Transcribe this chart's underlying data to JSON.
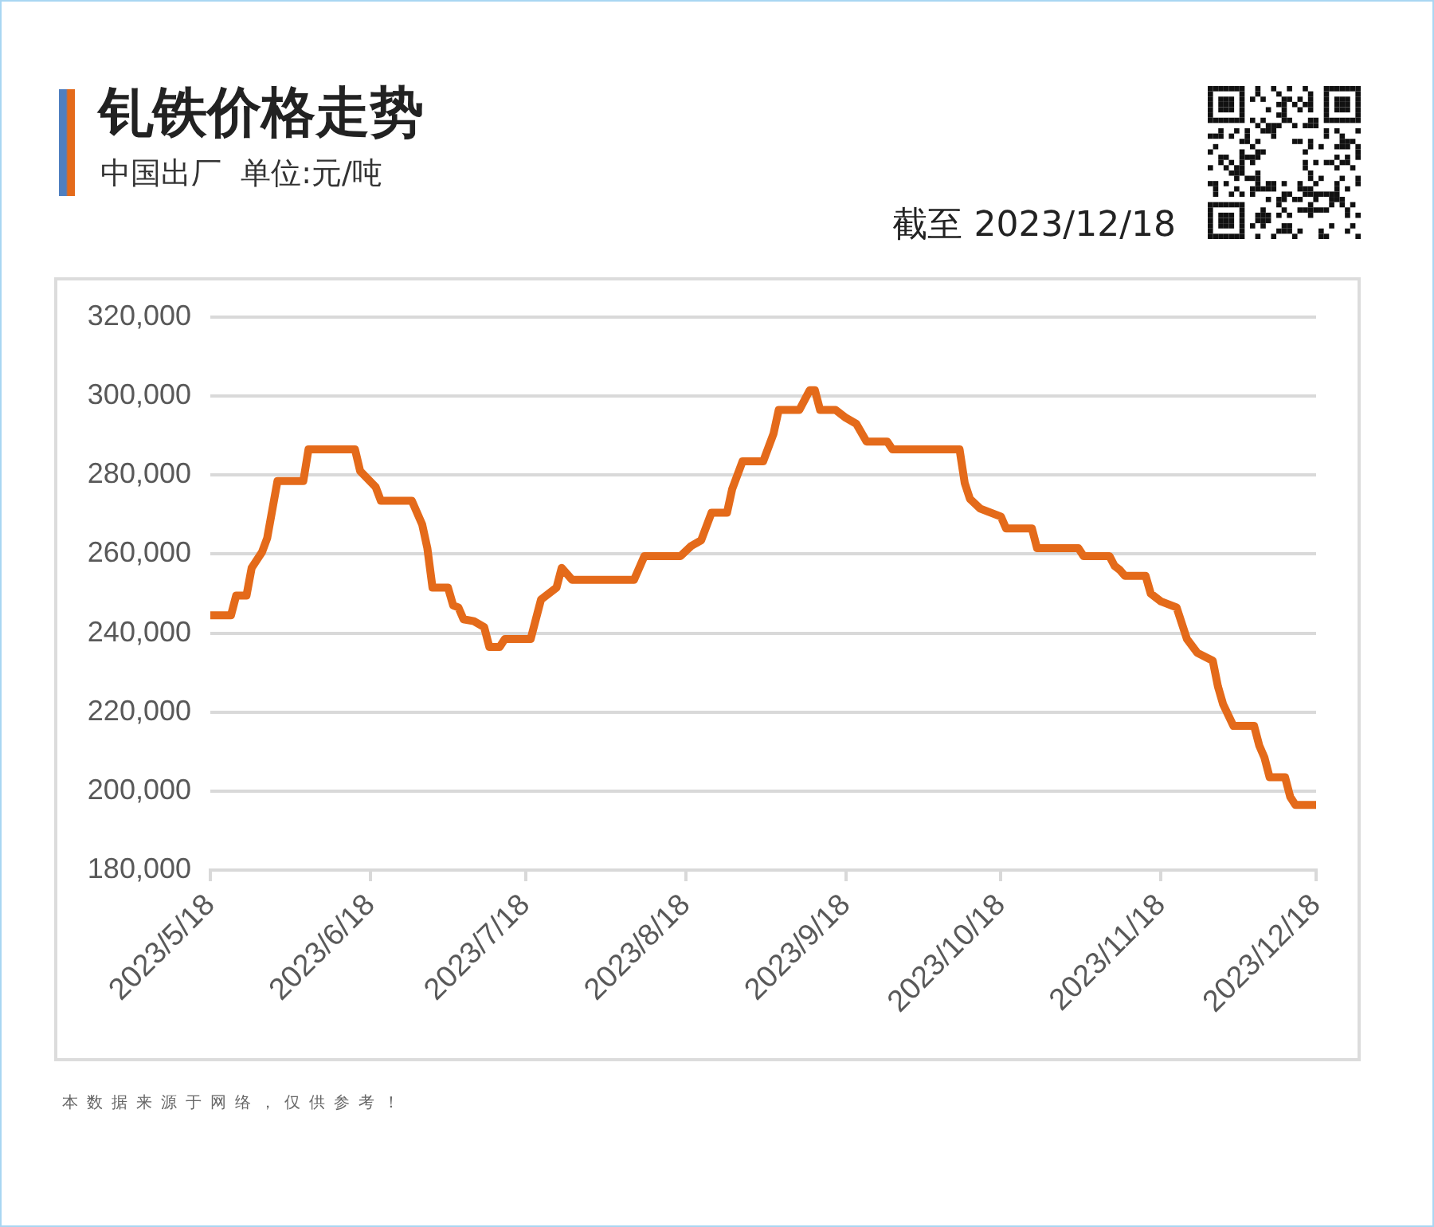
{
  "chart_data": {
    "type": "line",
    "title": "钆铁价格走势",
    "subtitle": "中国出厂  单位:元/吨",
    "annotations": [
      "截至 2023/12/18",
      "本数据来源于网络，仅供参考！"
    ],
    "x": [
      "2023-05-18",
      "2023-05-22",
      "2023-05-23",
      "2023-05-25",
      "2023-05-26",
      "2023-05-28",
      "2023-05-29",
      "2023-05-31",
      "2023-06-05",
      "2023-06-06",
      "2023-06-15",
      "2023-06-16",
      "2023-06-19",
      "2023-06-20",
      "2023-06-26",
      "2023-06-28",
      "2023-06-29",
      "2023-06-30",
      "2023-07-03",
      "2023-07-04",
      "2023-07-05",
      "2023-07-06",
      "2023-07-08",
      "2023-07-10",
      "2023-07-11",
      "2023-07-13",
      "2023-07-14",
      "2023-07-19",
      "2023-07-21",
      "2023-07-24",
      "2023-07-25",
      "2023-07-27",
      "2023-08-08",
      "2023-08-10",
      "2023-08-17",
      "2023-08-19",
      "2023-08-21",
      "2023-08-23",
      "2023-08-26",
      "2023-08-27",
      "2023-08-29",
      "2023-09-02",
      "2023-09-04",
      "2023-09-05",
      "2023-09-09",
      "2023-09-11",
      "2023-09-12",
      "2023-09-13",
      "2023-09-16",
      "2023-09-18",
      "2023-09-20",
      "2023-09-22",
      "2023-09-26",
      "2023-09-27",
      "2023-10-10",
      "2023-10-11",
      "2023-10-12",
      "2023-10-14",
      "2023-10-18",
      "2023-10-19",
      "2023-10-24",
      "2023-10-25",
      "2023-11-02",
      "2023-11-03",
      "2023-11-08",
      "2023-11-09",
      "2023-11-10",
      "2023-11-11",
      "2023-11-15",
      "2023-11-16",
      "2023-11-18",
      "2023-11-21",
      "2023-11-23",
      "2023-11-25",
      "2023-11-28",
      "2023-11-29",
      "2023-11-30",
      "2023-12-02",
      "2023-12-06",
      "2023-12-07",
      "2023-12-08",
      "2023-12-09",
      "2023-12-12",
      "2023-12-13",
      "2023-12-14",
      "2023-12-18"
    ],
    "values": [
      244500,
      244500,
      249500,
      249500,
      256500,
      260500,
      264000,
      278500,
      278500,
      286500,
      286500,
      281000,
      277000,
      273500,
      273500,
      267500,
      261500,
      251500,
      251500,
      247000,
      246500,
      243500,
      243000,
      241500,
      236500,
      236500,
      238500,
      238500,
      248500,
      251500,
      256500,
      253500,
      253500,
      259500,
      259500,
      262000,
      263500,
      270500,
      270500,
      276500,
      283500,
      283500,
      290500,
      296500,
      296500,
      301500,
      301500,
      296500,
      296500,
      294500,
      293000,
      288500,
      288500,
      286500,
      286500,
      278000,
      274000,
      271500,
      269500,
      266500,
      266500,
      261500,
      261500,
      259500,
      259500,
      257000,
      256000,
      254500,
      254500,
      250000,
      248000,
      246500,
      238500,
      235000,
      233000,
      226500,
      222000,
      216500,
      216500,
      211500,
      208500,
      203500,
      203500,
      198500,
      196500,
      196500
    ],
    "color": "#e46a1a",
    "xlim": [
      "2023-05-18",
      "2023-12-18"
    ],
    "xticks": [
      {
        "value": "2023-05-18",
        "label": "2023/5/18"
      },
      {
        "value": "2023-06-18",
        "label": "2023/6/18"
      },
      {
        "value": "2023-07-18",
        "label": "2023/7/18"
      },
      {
        "value": "2023-08-18",
        "label": "2023/8/18"
      },
      {
        "value": "2023-09-18",
        "label": "2023/9/18"
      },
      {
        "value": "2023-10-18",
        "label": "2023/10/18"
      },
      {
        "value": "2023-11-18",
        "label": "2023/11/18"
      },
      {
        "value": "2023-12-18",
        "label": "2023/12/18"
      }
    ],
    "ylim": [
      180000,
      320000
    ],
    "yticks": [
      {
        "value": 180000,
        "label": "180,000"
      },
      {
        "value": 200000,
        "label": "200,000"
      },
      {
        "value": 220000,
        "label": "220,000"
      },
      {
        "value": 240000,
        "label": "240,000"
      },
      {
        "value": 260000,
        "label": "260,000"
      },
      {
        "value": 280000,
        "label": "280,000"
      },
      {
        "value": 300000,
        "label": "300,000"
      },
      {
        "value": 320000,
        "label": "320,000"
      }
    ],
    "grid": "y",
    "legend": false
  }
}
